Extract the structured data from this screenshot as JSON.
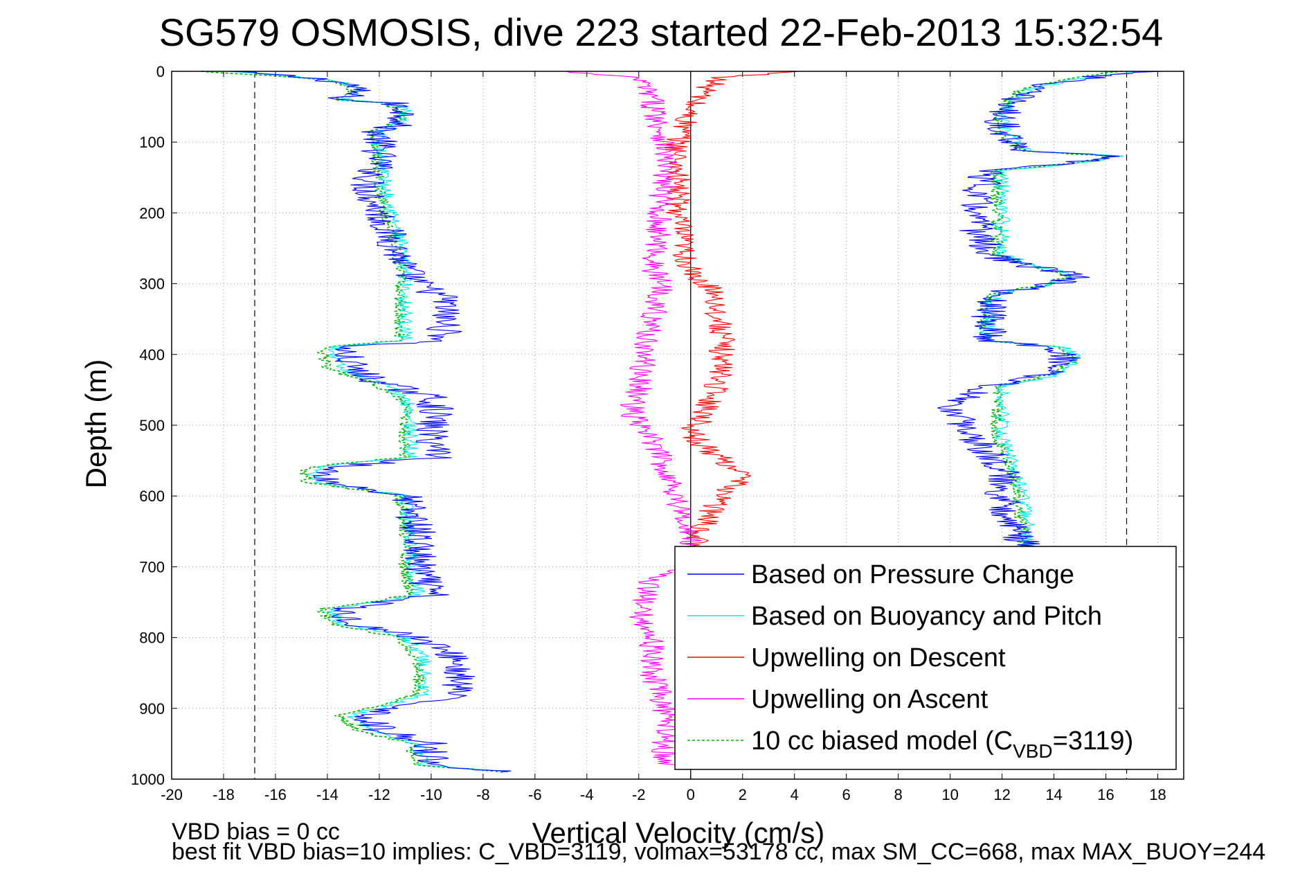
{
  "chart_data": {
    "type": "line",
    "title": "SG579 OSMOSIS, dive 223 started 22-Feb-2013 15:32:54",
    "xlabel": "Vertical Velocity (cm/s)",
    "ylabel": "Depth (m)",
    "xlim": [
      -20,
      19
    ],
    "ylim": [
      0,
      1000
    ],
    "y_reversed": true,
    "x_ticks": [
      -20,
      -18,
      -16,
      -14,
      -12,
      -10,
      -8,
      -6,
      -4,
      -2,
      0,
      2,
      4,
      6,
      8,
      10,
      12,
      14,
      16,
      18
    ],
    "y_ticks": [
      0,
      100,
      200,
      300,
      400,
      500,
      600,
      700,
      800,
      900,
      1000
    ],
    "grid": true,
    "reference_lines": [
      {
        "x": 0,
        "style": "solid"
      },
      {
        "x": -16.8,
        "style": "dashed"
      },
      {
        "x": 16.8,
        "style": "dashed"
      }
    ],
    "legend_position": "bottom-right",
    "series": [
      {
        "name": "Based on Pressure Change",
        "color": "#0000ff",
        "noise": 0.7,
        "segments": [
          {
            "depth": [
              0,
              5,
              12,
              20,
              30,
              40,
              45,
              55,
              70,
              85,
              95,
              110,
              130,
              160,
              200,
              240,
              280,
              300,
              320,
              350,
              380,
              390,
              420,
              440,
              460,
              480,
              500,
              520,
              545,
              560,
              580,
              600,
              650,
              700,
              740,
              760,
              780,
              800,
              830,
              860,
              880,
              910,
              930,
              950,
              980,
              990
            ],
            "x": [
              -18,
              -16,
              -14,
              -13,
              -13,
              -13.5,
              -11.5,
              -11,
              -11,
              -12,
              -12,
              -12,
              -12,
              -12.5,
              -12,
              -11.5,
              -11,
              -10.5,
              -9.5,
              -9.5,
              -9.5,
              -13.5,
              -13,
              -12,
              -10,
              -9.8,
              -10,
              -10,
              -9.5,
              -14,
              -14,
              -11,
              -10.5,
              -10.5,
              -10,
              -13.5,
              -13,
              -10.5,
              -9,
              -9,
              -9,
              -12.5,
              -12,
              -10,
              -10,
              -7
            ]
          },
          {
            "depth": [
              0,
              10,
              25,
              40,
              60,
              80,
              100,
              112,
              120,
              128,
              140,
              180,
              220,
              260,
              275,
              290,
              300,
              315,
              330,
              360,
              380,
              390,
              410,
              430,
              445,
              460,
              480,
              500,
              520,
              560,
              600,
              650,
              680
            ],
            "x": [
              18,
              15,
              13,
              12.5,
              12,
              12,
              12.5,
              13,
              16,
              15,
              11.5,
              11,
              11,
              11.5,
              13,
              15,
              14,
              11.5,
              11.5,
              11.5,
              11.5,
              14,
              14.5,
              13.5,
              11.5,
              10.5,
              10,
              10.5,
              11,
              12,
              12,
              12.5,
              13
            ]
          }
        ]
      },
      {
        "name": "Based on Buoyancy and Pitch",
        "color": "#00e8e8",
        "noise": 0.3,
        "segments": [
          {
            "depth": [
              0,
              5,
              12,
              20,
              30,
              40,
              45,
              55,
              70,
              85,
              95,
              110,
              130,
              160,
              200,
              240,
              280,
              300,
              320,
              350,
              380,
              390,
              420,
              440,
              460,
              480,
              500,
              520,
              545,
              560,
              580,
              600,
              650,
              700,
              740,
              760,
              780,
              800,
              830,
              860,
              880,
              910,
              930,
              950,
              980,
              990
            ],
            "x": [
              -18,
              -16,
              -14,
              -13,
              -13,
              -13.5,
              -11.5,
              -11,
              -11,
              -12,
              -12,
              -12,
              -11.8,
              -11.8,
              -11.5,
              -11.2,
              -11,
              -11,
              -11,
              -11,
              -11,
              -13.8,
              -13.5,
              -12,
              -11,
              -10.8,
              -10.8,
              -10.8,
              -10.8,
              -14.5,
              -14.5,
              -11,
              -10.8,
              -10.7,
              -10.5,
              -13.8,
              -13.5,
              -11,
              -10.3,
              -10.3,
              -10.3,
              -13,
              -12.5,
              -10.5,
              -10.3,
              -7
            ]
          },
          {
            "depth": [
              0,
              10,
              25,
              40,
              60,
              80,
              100,
              112,
              120,
              128,
              140,
              180,
              220,
              260,
              275,
              290,
              300,
              315,
              330,
              360,
              380,
              390,
              410,
              430,
              445,
              460,
              480,
              500,
              520,
              560,
              600,
              650,
              680
            ],
            "x": [
              17,
              15,
              13,
              12.5,
              12,
              12,
              12.5,
              13,
              16.5,
              15.5,
              12,
              12,
              12,
              12,
              13.5,
              14.8,
              14,
              11.8,
              11.5,
              11.5,
              11.5,
              14.5,
              15,
              14,
              12,
              12,
              12,
              12,
              12,
              12.5,
              12.8,
              13,
              13
            ]
          }
        ]
      },
      {
        "name": "Upwelling on Descent",
        "color": "#ff0000",
        "noise": 0.5,
        "segments": [
          {
            "depth": [
              0,
              10,
              50,
              100,
              150,
              200,
              250,
              290,
              310,
              340,
              370,
              400,
              430,
              460,
              490,
              510,
              530,
              555,
              570,
              590,
              610,
              640,
              660,
              700
            ],
            "x": [
              4,
              1,
              0,
              -0.5,
              -0.5,
              -0.5,
              -0.3,
              0,
              1,
              1,
              1.2,
              1.2,
              1.2,
              0.8,
              0.5,
              0,
              0.5,
              1.5,
              2,
              1.5,
              1,
              0.5,
              0.2,
              0
            ]
          }
        ]
      },
      {
        "name": "Upwelling on Ascent",
        "color": "#ff00ff",
        "noise": 0.5,
        "segments": [
          {
            "depth": [
              0,
              10,
              40,
              100,
              150,
              200,
              250,
              280,
              300,
              350,
              400,
              450,
              480,
              500,
              520,
              560,
              600,
              640,
              660,
              700,
              720,
              760,
              800,
              850,
              900,
              950,
              980
            ],
            "x": [
              -5,
              -2,
              -1.5,
              -1,
              -1,
              -1.2,
              -1.3,
              -1.5,
              -1,
              -1.5,
              -1.8,
              -2,
              -2.3,
              -2,
              -1.5,
              -1,
              -0.5,
              -0.3,
              0,
              0,
              -1.5,
              -2,
              -1.5,
              -1.5,
              -1,
              -1,
              -1
            ]
          }
        ]
      },
      {
        "name": "10 cc biased model (C_VBD=3119)",
        "color": "#00b000",
        "dashed": true,
        "noise": 0.25,
        "segments": [
          {
            "depth": [
              0,
              5,
              12,
              20,
              30,
              40,
              45,
              55,
              70,
              85,
              95,
              110,
              130,
              160,
              200,
              240,
              280,
              300,
              320,
              350,
              380,
              390,
              420,
              440,
              460,
              480,
              500,
              520,
              545,
              560,
              580,
              600,
              650,
              700,
              740,
              760,
              780,
              800,
              830,
              860,
              880,
              910,
              930,
              950,
              980,
              990
            ],
            "x": [
              -19,
              -16.5,
              -14,
              -13.2,
              -13.2,
              -13.8,
              -11.8,
              -11.2,
              -11.2,
              -12.2,
              -12.2,
              -12.2,
              -12,
              -12,
              -11.8,
              -11.5,
              -11.2,
              -11.2,
              -11.2,
              -11.2,
              -11.2,
              -14.2,
              -14,
              -12.3,
              -11.2,
              -11,
              -11,
              -11,
              -11,
              -14.8,
              -14.8,
              -11.2,
              -11,
              -11,
              -10.8,
              -14.2,
              -13.8,
              -11.2,
              -10.5,
              -10.5,
              -10.5,
              -13.5,
              -13,
              -10.8,
              -10.5,
              -7
            ]
          },
          {
            "depth": [
              0,
              10,
              25,
              40,
              60,
              80,
              100,
              112,
              120,
              128,
              140,
              180,
              220,
              260,
              275,
              290,
              300,
              315,
              330,
              360,
              380,
              390,
              410,
              430,
              445,
              460,
              480,
              500,
              520,
              560,
              600,
              650,
              680
            ],
            "x": [
              16.5,
              14.8,
              12.8,
              12.3,
              11.8,
              11.8,
              12.3,
              12.8,
              16.2,
              15.2,
              11.8,
              11.8,
              11.8,
              11.8,
              13.2,
              14.5,
              13.8,
              11.5,
              11.3,
              11.3,
              11.3,
              14.2,
              14.7,
              13.7,
              11.8,
              11.8,
              11.8,
              11.8,
              11.8,
              12.3,
              12.6,
              12.8,
              12.8
            ]
          }
        ]
      }
    ],
    "legend": [
      {
        "label": "Based on Pressure Change",
        "color": "#0000ff",
        "dashed": false
      },
      {
        "label": "Based on Buoyancy and Pitch",
        "color": "#00e8e8",
        "dashed": false
      },
      {
        "label": "Upwelling on Descent",
        "color": "#ff0000",
        "dashed": false
      },
      {
        "label": "Upwelling on Ascent",
        "color": "#ff00ff",
        "dashed": false
      },
      {
        "label": "10 cc biased model (C",
        "sub": "VBD",
        "suffix": "=3119)",
        "color": "#00b000",
        "dashed": true
      }
    ]
  },
  "footer": {
    "line1": "VBD bias = 0 cc",
    "line2": "best fit VBD bias=10 implies: C_VBD=3119, volmax=53178 cc, max SM_CC=668, max MAX_BUOY=244"
  }
}
